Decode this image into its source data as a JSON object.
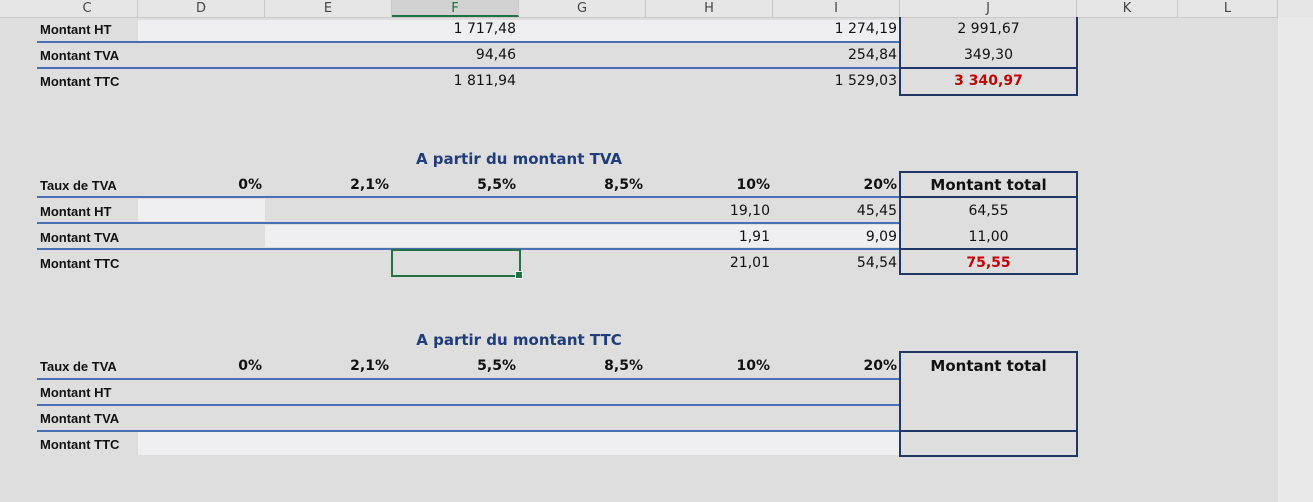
{
  "columns": [
    "C",
    "D",
    "E",
    "F",
    "G",
    "H",
    "I",
    "J",
    "K",
    "L"
  ],
  "section1": {
    "rows": [
      {
        "label": "Montant HT",
        "f": "1 717,48",
        "i": "1 274,19",
        "total": "2 991,67"
      },
      {
        "label": "Montant TVA",
        "f": "94,46",
        "i": "254,84",
        "total": "349,30"
      },
      {
        "label": "Montant TTC",
        "f": "1 811,94",
        "i": "1 529,03",
        "total": "3 340,97"
      }
    ]
  },
  "section2": {
    "title": "A partir du montant TVA",
    "rate_label": "Taux de TVA",
    "rates": [
      "0%",
      "2,1%",
      "5,5%",
      "8,5%",
      "10%",
      "20%"
    ],
    "total_header": "Montant total",
    "rows": [
      {
        "label": "Montant HT",
        "h": "19,10",
        "i": "45,45",
        "total": "64,55"
      },
      {
        "label": "Montant TVA",
        "h": "1,91",
        "i": "9,09",
        "total": "11,00"
      },
      {
        "label": "Montant TTC",
        "h": "21,01",
        "i": "54,54",
        "total": "75,55"
      }
    ]
  },
  "section3": {
    "title": "A partir du montant TTC",
    "rate_label": "Taux de TVA",
    "rates": [
      "0%",
      "2,1%",
      "5,5%",
      "8,5%",
      "10%",
      "20%"
    ],
    "total_header": "Montant total",
    "rows": [
      {
        "label": "Montant HT"
      },
      {
        "label": "Montant TVA"
      },
      {
        "label": "Montant TTC"
      }
    ]
  },
  "colors": {
    "accent_blue": "#1f3864",
    "line_blue": "#4a6fb5",
    "total_red": "#c00000",
    "selection_green": "#217346"
  }
}
